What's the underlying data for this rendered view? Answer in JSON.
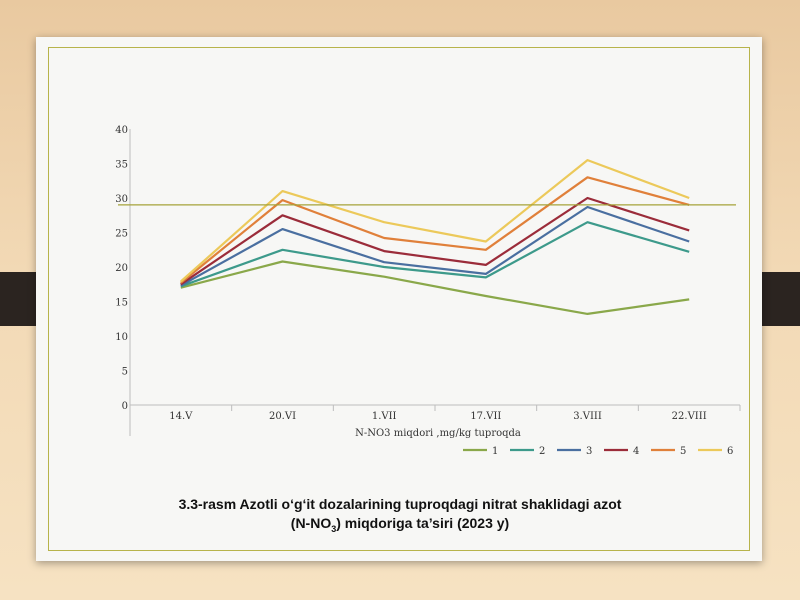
{
  "chart_data": {
    "type": "line",
    "categories": [
      "14.V",
      "20.VI",
      "1.VII",
      "17.VII",
      "3.VIII",
      "22.VIII"
    ],
    "xlabel": "N-NO3 miqdori ,mg/kg tuproqda",
    "ylabel": "",
    "ylim": [
      0,
      40
    ],
    "yticks": [
      "0",
      "5",
      "10",
      "15",
      "20",
      "25",
      "30",
      "35",
      "40"
    ],
    "grid": false,
    "reference_line": 29,
    "legend_position": "bottom-right",
    "series": [
      {
        "name": "1",
        "color": "#8aa84a",
        "values": [
          17.0,
          20.8,
          18.6,
          15.8,
          13.2,
          15.3
        ]
      },
      {
        "name": "2",
        "color": "#3d9a8b",
        "values": [
          17.2,
          22.5,
          20.0,
          18.5,
          26.5,
          22.2
        ]
      },
      {
        "name": "3",
        "color": "#4a6fa0",
        "values": [
          17.3,
          25.5,
          20.7,
          19.0,
          28.7,
          23.7
        ]
      },
      {
        "name": "4",
        "color": "#9b2c3a",
        "values": [
          17.5,
          27.5,
          22.3,
          20.3,
          30.0,
          25.3
        ]
      },
      {
        "name": "5",
        "color": "#e0803a",
        "values": [
          17.7,
          29.7,
          24.2,
          22.5,
          33.0,
          29.0
        ]
      },
      {
        "name": "6",
        "color": "#ecc95a",
        "values": [
          17.9,
          31.0,
          26.5,
          23.7,
          35.5,
          30.0
        ]
      }
    ]
  },
  "caption": {
    "line1": "3.3-rasm Azotli o‘g‘it dozalarining tuproqdagi nitrat shaklidagi azot",
    "line2_pre": "(N-NO",
    "line2_sub": "3",
    "line2_post": ") miqdoriga ta’siri (2023 y)"
  },
  "colors": {
    "slide_border": "#b7b34a",
    "reference_line": "#a6a33a",
    "tab": "#2b2420"
  }
}
